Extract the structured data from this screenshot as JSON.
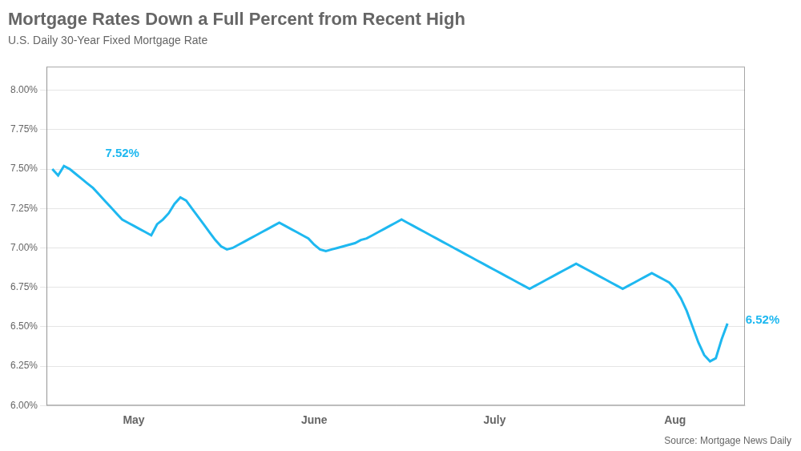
{
  "chart_data": {
    "type": "line",
    "title": "Mortgage Rates Down a Full Percent from Recent High",
    "subtitle": "U.S. Daily 30-Year Fixed Mortgage Rate",
    "source": "Source: Mortgage News Daily",
    "color": "#1eb8f0",
    "grid": true,
    "ylim": [
      6.0,
      8.15
    ],
    "yticks": [
      {
        "value": 6.0,
        "label": "6.00%"
      },
      {
        "value": 6.25,
        "label": "6.25%"
      },
      {
        "value": 6.5,
        "label": "6.50%"
      },
      {
        "value": 6.75,
        "label": "6.75%"
      },
      {
        "value": 7.0,
        "label": "7.00%"
      },
      {
        "value": 7.25,
        "label": "7.25%"
      },
      {
        "value": 7.5,
        "label": "7.50%"
      },
      {
        "value": 7.75,
        "label": "7.75%"
      },
      {
        "value": 8.0,
        "label": "8.00%"
      }
    ],
    "annotations": [
      {
        "text": "7.52%",
        "x": 8,
        "y": 7.52
      },
      {
        "text": "6.52%",
        "x": 118,
        "y": 6.52
      }
    ],
    "categories": [
      null,
      null,
      null,
      null,
      null,
      null,
      null,
      null,
      null,
      null,
      null,
      null,
      null,
      null,
      "May",
      null,
      null,
      null,
      null,
      null,
      null,
      null,
      null,
      null,
      null,
      null,
      null,
      null,
      null,
      null,
      null,
      null,
      null,
      null,
      null,
      null,
      null,
      null,
      null,
      null,
      null,
      null,
      null,
      null,
      null,
      "June",
      null,
      null,
      null,
      null,
      null,
      null,
      null,
      null,
      null,
      null,
      null,
      null,
      null,
      null,
      null,
      null,
      null,
      null,
      null,
      null,
      null,
      null,
      null,
      null,
      null,
      null,
      null,
      null,
      null,
      null,
      "July",
      null,
      null,
      null,
      null,
      null,
      null,
      null,
      null,
      null,
      null,
      null,
      null,
      null,
      null,
      null,
      null,
      null,
      null,
      null,
      null,
      null,
      null,
      null,
      null,
      null,
      null,
      null,
      null,
      null,
      null,
      "Aug",
      null,
      null,
      null,
      null,
      null,
      null,
      null,
      null,
      null
    ],
    "values": [
      7.5,
      7.46,
      7.52,
      7.5,
      7.47,
      7.44,
      7.41,
      7.38,
      7.34,
      7.3,
      7.26,
      7.22,
      7.18,
      7.16,
      7.14,
      7.12,
      7.1,
      7.08,
      7.15,
      7.18,
      7.22,
      7.28,
      7.32,
      7.3,
      7.25,
      7.2,
      7.15,
      7.1,
      7.05,
      7.01,
      6.99,
      7.0,
      7.02,
      7.04,
      7.06,
      7.08,
      7.1,
      7.12,
      7.14,
      7.16,
      7.14,
      7.12,
      7.1,
      7.08,
      7.06,
      7.02,
      6.99,
      6.98,
      6.99,
      7.0,
      7.01,
      7.02,
      7.03,
      7.05,
      7.06,
      7.08,
      7.1,
      7.12,
      7.14,
      7.16,
      7.18,
      7.16,
      7.14,
      7.12,
      7.1,
      7.08,
      7.06,
      7.04,
      7.02,
      7.0,
      6.98,
      6.96,
      6.94,
      6.92,
      6.9,
      6.88,
      6.86,
      6.84,
      6.82,
      6.8,
      6.78,
      6.76,
      6.74,
      6.76,
      6.78,
      6.8,
      6.82,
      6.84,
      6.86,
      6.88,
      6.9,
      6.88,
      6.86,
      6.84,
      6.82,
      6.8,
      6.78,
      6.76,
      6.74,
      6.76,
      6.78,
      6.8,
      6.82,
      6.84,
      6.82,
      6.8,
      6.78,
      6.74,
      6.68,
      6.6,
      6.5,
      6.4,
      6.32,
      6.28,
      6.3,
      6.42,
      6.52
    ]
  }
}
